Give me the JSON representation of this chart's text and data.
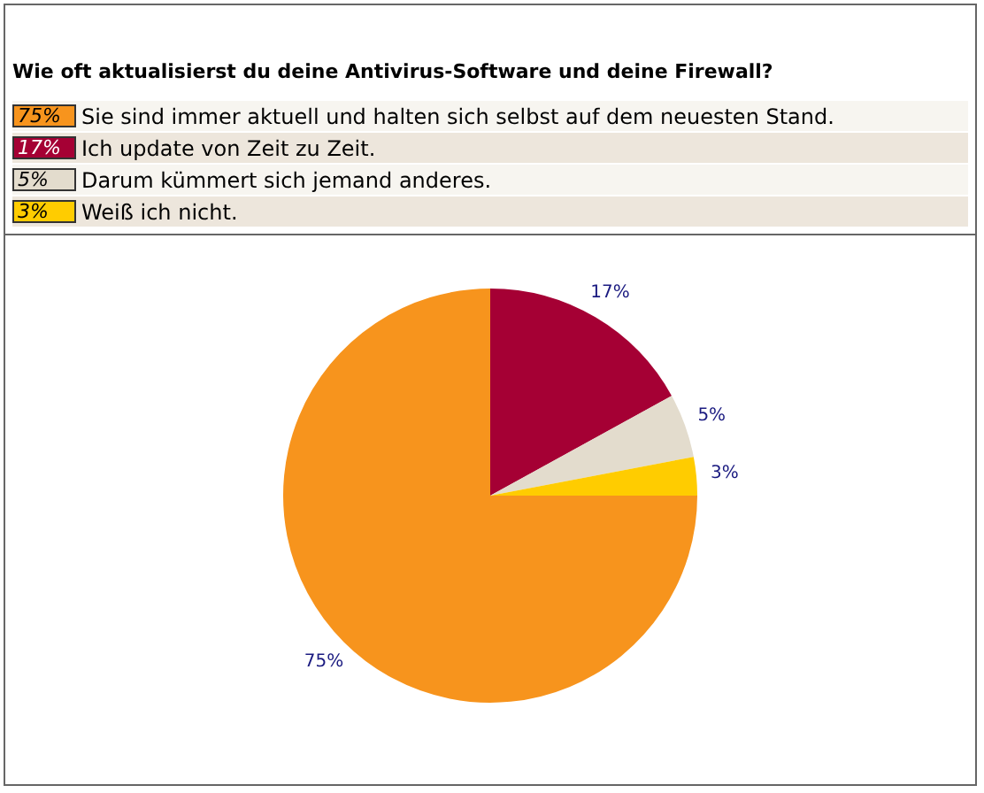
{
  "chart_data": {
    "type": "pie",
    "title": "Wie oft aktualisierst du deine Antivirus-Software und deine Firewall?",
    "categories": [
      "Sie sind immer aktuell und halten sich selbst auf dem neuesten Stand.",
      "Ich update von Zeit zu Zeit.",
      "Darum kümmert sich jemand anderes.",
      "Weiß ich nicht."
    ],
    "values": [
      75,
      17,
      5,
      3
    ],
    "value_labels": [
      "75%",
      "17%",
      "5%",
      "3%"
    ],
    "colors": [
      "#f7941d",
      "#a50034",
      "#e3dccd",
      "#ffcc00"
    ],
    "legend": "top"
  }
}
